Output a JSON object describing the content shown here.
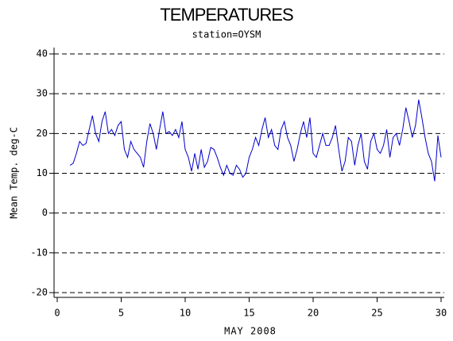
{
  "chart_data": {
    "type": "line",
    "title": "TEMPERATURES",
    "subtitle": "station=OYSM",
    "x_label": "MAY 2008",
    "y_label": "Mean Temp. deg-C",
    "xlim": [
      0,
      30
    ],
    "xticks": [
      0,
      5,
      10,
      15,
      20,
      25,
      30
    ],
    "ylim": [
      -20,
      40
    ],
    "yticks": [
      -20,
      -10,
      0,
      10,
      20,
      30,
      40
    ],
    "grid": true,
    "x": [
      1,
      1.25,
      1.5,
      1.75,
      2,
      2.25,
      2.5,
      2.75,
      3,
      3.25,
      3.5,
      3.75,
      4,
      4.25,
      4.5,
      4.75,
      5,
      5.25,
      5.5,
      5.75,
      6,
      6.25,
      6.5,
      6.75,
      7,
      7.25,
      7.5,
      7.75,
      8,
      8.25,
      8.5,
      8.75,
      9,
      9.25,
      9.5,
      9.75,
      10,
      10.25,
      10.5,
      10.75,
      11,
      11.25,
      11.5,
      11.75,
      12,
      12.25,
      12.5,
      12.75,
      13,
      13.25,
      13.5,
      13.75,
      14,
      14.25,
      14.5,
      14.75,
      15,
      15.25,
      15.5,
      15.75,
      16,
      16.25,
      16.5,
      16.75,
      17,
      17.25,
      17.5,
      17.75,
      18,
      18.25,
      18.5,
      18.75,
      19,
      19.25,
      19.5,
      19.75,
      20,
      20.25,
      20.5,
      20.75,
      21,
      21.25,
      21.5,
      21.75,
      22,
      22.25,
      22.5,
      22.75,
      23,
      23.25,
      23.5,
      23.75,
      24,
      24.25,
      24.5,
      24.75,
      25,
      25.25,
      25.5,
      25.75,
      26,
      26.25,
      26.5,
      26.75,
      27,
      27.25,
      27.5,
      27.75,
      28,
      28.25,
      28.5,
      28.75,
      29,
      29.25,
      29.5,
      29.75,
      30
    ],
    "series": [
      {
        "color": "#0000cc",
        "values": [
          12,
          12.5,
          15,
          18,
          17,
          17.5,
          21,
          24.5,
          20,
          18,
          23,
          25.5,
          20,
          21,
          19.5,
          22,
          23,
          16,
          14,
          18,
          16,
          15,
          14,
          11.5,
          18,
          22.5,
          20,
          16,
          21,
          25.5,
          20,
          20.5,
          19.5,
          21,
          19,
          23,
          16,
          14,
          10.5,
          15,
          11,
          16,
          11.5,
          13,
          16.5,
          16,
          14,
          11.5,
          9.5,
          12,
          10,
          9.5,
          12,
          11,
          9,
          10,
          14,
          16,
          19,
          17,
          21,
          24,
          19,
          21,
          17,
          16,
          21,
          23,
          19,
          17,
          13,
          16,
          20,
          23,
          19,
          24,
          15,
          14,
          17,
          20,
          17,
          17,
          19,
          22,
          16,
          10.5,
          13,
          19,
          18,
          12,
          17,
          20,
          13,
          11,
          18,
          20,
          16,
          15,
          17,
          21,
          14,
          19,
          20,
          17,
          21,
          26.5,
          23,
          19,
          22,
          28.5,
          24,
          19,
          15,
          13,
          8,
          19.5,
          14
        ]
      }
    ]
  }
}
